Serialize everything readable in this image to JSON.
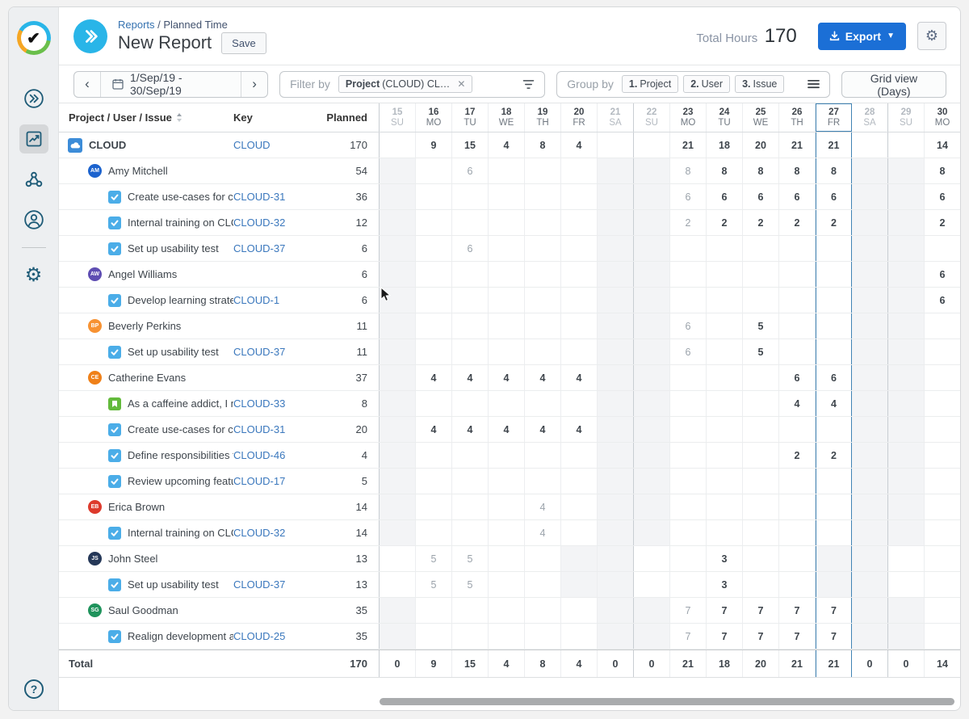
{
  "header": {
    "breadcrumb": {
      "link": "Reports",
      "rest": " / Planned Time"
    },
    "title": "New Report",
    "save_label": "Save",
    "total_hours_label": "Total Hours",
    "total_hours_value": "170",
    "export_label": "Export"
  },
  "toolbar": {
    "date_range": "1/Sep/19 - 30/Sep/19",
    "filter_label": "Filter by",
    "filter_chip": {
      "bold": "Project",
      "rest": " (CLOUD) CL…",
      "close": "✕"
    },
    "group_label": "Group by",
    "group_chips": [
      {
        "num": "1.",
        "label": "Project"
      },
      {
        "num": "2.",
        "label": "User"
      },
      {
        "num": "3.",
        "label": "Issue"
      }
    ],
    "view_button": "Grid view (Days)"
  },
  "sidebar": {
    "icons": [
      "double-chevron",
      "trend-chart",
      "hierarchy",
      "user-profile",
      "settings-gear"
    ],
    "help_label": "?"
  },
  "colors": {
    "accent_blue": "#29b5e8",
    "export_blue": "#1b6fd6",
    "link_blue": "#3b78bd",
    "today_border": "#4183b4",
    "weekend_bg": "#f3f4f6",
    "sidebar_icon": "#1f5c78",
    "task_icon": "#4BADE8",
    "story_icon": "#63BA3C",
    "project_icon": "#3C8CD8"
  },
  "table": {
    "columns": {
      "name": "Project / User / Issue",
      "key": "Key",
      "planned": "Planned"
    },
    "dates": [
      {
        "day": "15",
        "dow": "SU"
      },
      {
        "day": "16",
        "dow": "MO"
      },
      {
        "day": "17",
        "dow": "TU"
      },
      {
        "day": "18",
        "dow": "WE"
      },
      {
        "day": "19",
        "dow": "TH"
      },
      {
        "day": "20",
        "dow": "FR"
      },
      {
        "day": "21",
        "dow": "SA"
      },
      {
        "day": "22",
        "dow": "SU"
      },
      {
        "day": "23",
        "dow": "MO"
      },
      {
        "day": "24",
        "dow": "TU"
      },
      {
        "day": "25",
        "dow": "WE"
      },
      {
        "day": "26",
        "dow": "TH"
      },
      {
        "day": "27",
        "dow": "FR"
      },
      {
        "day": "28",
        "dow": "SA"
      },
      {
        "day": "29",
        "dow": "SU"
      },
      {
        "day": "30",
        "dow": "MO"
      }
    ],
    "today": "27",
    "week_start_days": [
      "15",
      "22",
      "29"
    ],
    "default_off_days": [
      "15",
      "21",
      "22",
      "28",
      "29"
    ],
    "rows": [
      {
        "type": "project",
        "icon": "cloud",
        "name": "CLOUD",
        "key": "CLOUD",
        "planned": "170",
        "cells": {
          "16": {
            "v": "9"
          },
          "17": {
            "v": "15"
          },
          "18": {
            "v": "4"
          },
          "19": {
            "v": "8"
          },
          "20": {
            "v": "4"
          },
          "23": {
            "v": "21"
          },
          "24": {
            "v": "18"
          },
          "25": {
            "v": "20"
          },
          "26": {
            "v": "21"
          },
          "27": {
            "v": "21"
          },
          "30": {
            "v": "14"
          }
        }
      },
      {
        "type": "user",
        "initials": "AM",
        "avatar_color": "#1c63ce",
        "name": "Amy Mitchell",
        "planned": "54",
        "cells": {
          "17": {
            "v": "6",
            "muted": true
          },
          "23": {
            "v": "8",
            "muted": true
          },
          "24": {
            "v": "8"
          },
          "25": {
            "v": "8"
          },
          "26": {
            "v": "8"
          },
          "27": {
            "v": "8"
          },
          "30": {
            "v": "8"
          }
        }
      },
      {
        "type": "issue",
        "issue_type": "task",
        "name": "Create use-cases for clo…",
        "key": "CLOUD-31",
        "planned": "36",
        "cells": {
          "23": {
            "v": "6",
            "muted": true
          },
          "24": {
            "v": "6"
          },
          "25": {
            "v": "6"
          },
          "26": {
            "v": "6"
          },
          "27": {
            "v": "6"
          },
          "30": {
            "v": "6"
          }
        }
      },
      {
        "type": "issue",
        "issue_type": "task",
        "name": "Internal training on CLO…",
        "key": "CLOUD-32",
        "planned": "12",
        "cells": {
          "23": {
            "v": "2",
            "muted": true
          },
          "24": {
            "v": "2"
          },
          "25": {
            "v": "2"
          },
          "26": {
            "v": "2"
          },
          "27": {
            "v": "2"
          },
          "30": {
            "v": "2"
          }
        }
      },
      {
        "type": "issue",
        "issue_type": "task",
        "name": "Set up usability test",
        "key": "CLOUD-37",
        "planned": "6",
        "cells": {
          "17": {
            "v": "6",
            "muted": true
          }
        }
      },
      {
        "type": "user",
        "initials": "AW",
        "avatar_color": "#5e4db2",
        "name": "Angel Williams",
        "planned": "6",
        "cells": {
          "30": {
            "v": "6"
          }
        }
      },
      {
        "type": "issue",
        "issue_type": "task",
        "name": "Develop learning strategy",
        "key": "CLOUD-1",
        "planned": "6",
        "cells": {
          "30": {
            "v": "6"
          }
        }
      },
      {
        "type": "user",
        "initials": "BP",
        "avatar_color": "#f79232",
        "name": "Beverly Perkins",
        "planned": "11",
        "cells": {
          "23": {
            "v": "6",
            "muted": true
          },
          "25": {
            "v": "5"
          }
        }
      },
      {
        "type": "issue",
        "issue_type": "task",
        "name": "Set up usability test",
        "key": "CLOUD-37",
        "planned": "11",
        "cells": {
          "23": {
            "v": "6",
            "muted": true
          },
          "25": {
            "v": "5"
          }
        }
      },
      {
        "type": "user",
        "initials": "CE",
        "avatar_color": "#ef8018",
        "name": "Catherine Evans",
        "planned": "37",
        "cells": {
          "16": {
            "v": "4"
          },
          "17": {
            "v": "4"
          },
          "18": {
            "v": "4"
          },
          "19": {
            "v": "4"
          },
          "20": {
            "v": "4"
          },
          "26": {
            "v": "6"
          },
          "27": {
            "v": "6"
          }
        }
      },
      {
        "type": "issue",
        "issue_type": "story",
        "name": "As a caffeine addict, I ne…",
        "key": "CLOUD-33",
        "planned": "8",
        "cells": {
          "26": {
            "v": "4"
          },
          "27": {
            "v": "4"
          }
        }
      },
      {
        "type": "issue",
        "issue_type": "task",
        "name": "Create use-cases for clo…",
        "key": "CLOUD-31",
        "planned": "20",
        "cells": {
          "16": {
            "v": "4"
          },
          "17": {
            "v": "4"
          },
          "18": {
            "v": "4"
          },
          "19": {
            "v": "4"
          },
          "20": {
            "v": "4"
          }
        }
      },
      {
        "type": "issue",
        "issue_type": "task",
        "name": "Define responsibilities fo…",
        "key": "CLOUD-46",
        "planned": "4",
        "cells": {
          "26": {
            "v": "2"
          },
          "27": {
            "v": "2"
          }
        }
      },
      {
        "type": "issue",
        "issue_type": "task",
        "name": "Review upcoming featur…",
        "key": "CLOUD-17",
        "planned": "5",
        "cells": {}
      },
      {
        "type": "user",
        "initials": "EB",
        "avatar_color": "#dd3a2c",
        "name": "Erica Brown",
        "planned": "14",
        "cells": {
          "19": {
            "v": "4",
            "muted": true
          }
        }
      },
      {
        "type": "issue",
        "issue_type": "task",
        "name": "Internal training on CLO…",
        "key": "CLOUD-32",
        "planned": "14",
        "cells": {
          "19": {
            "v": "4",
            "muted": true
          }
        }
      },
      {
        "type": "user",
        "initials": "JS",
        "avatar_color": "#253858",
        "name": "John Steel",
        "planned": "13",
        "off_days": [
          "20",
          "21",
          "27",
          "28"
        ],
        "cells": {
          "16": {
            "v": "5",
            "muted": true
          },
          "17": {
            "v": "5",
            "muted": true
          },
          "24": {
            "v": "3"
          }
        }
      },
      {
        "type": "issue",
        "issue_type": "task",
        "name": "Set up usability test",
        "key": "CLOUD-37",
        "planned": "13",
        "off_days": [
          "20",
          "21",
          "27",
          "28"
        ],
        "cells": {
          "16": {
            "v": "5",
            "muted": true
          },
          "17": {
            "v": "5",
            "muted": true
          },
          "24": {
            "v": "3"
          }
        }
      },
      {
        "type": "user",
        "initials": "SG",
        "avatar_color": "#1f935c",
        "name": "Saul Goodman",
        "planned": "35",
        "cells": {
          "23": {
            "v": "7",
            "muted": true
          },
          "24": {
            "v": "7"
          },
          "25": {
            "v": "7"
          },
          "26": {
            "v": "7"
          },
          "27": {
            "v": "7"
          }
        }
      },
      {
        "type": "issue",
        "issue_type": "task",
        "name": "Realign development as…",
        "key": "CLOUD-25",
        "planned": "35",
        "cells": {
          "23": {
            "v": "7",
            "muted": true
          },
          "24": {
            "v": "7"
          },
          "25": {
            "v": "7"
          },
          "26": {
            "v": "7"
          },
          "27": {
            "v": "7"
          }
        }
      }
    ],
    "total": {
      "label": "Total",
      "planned": "170",
      "cells": {
        "15": "0",
        "16": "9",
        "17": "15",
        "18": "4",
        "19": "8",
        "20": "4",
        "21": "0",
        "22": "0",
        "23": "21",
        "24": "18",
        "25": "20",
        "26": "21",
        "27": "21",
        "28": "0",
        "29": "0",
        "30": "14"
      }
    }
  }
}
